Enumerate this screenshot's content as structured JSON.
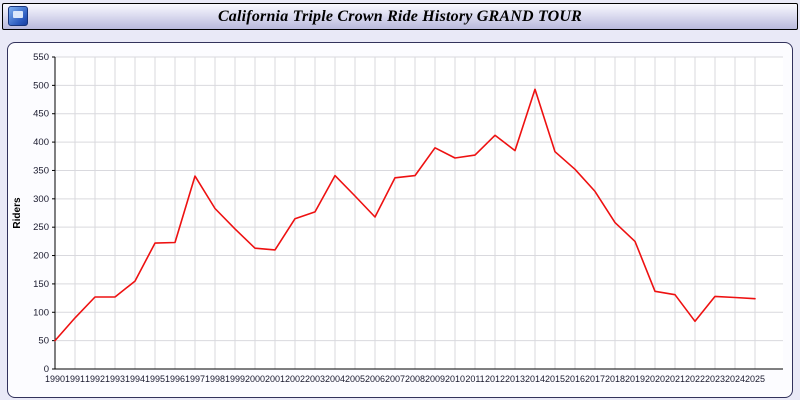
{
  "header": {
    "title": "California Triple Crown Ride History GRAND TOUR"
  },
  "chart_data": {
    "type": "line",
    "title": "California Triple Crown Ride History GRAND TOUR",
    "xlabel": "",
    "ylabel": "Riders",
    "ylim": [
      0,
      550
    ],
    "ytick_step": 50,
    "grid": true,
    "legend": "none",
    "plot_bg": "#ffffff",
    "grid_color": "#d9d9de",
    "axis_color": "#000000",
    "tick_label_color": "#1a1a2e",
    "x": [
      1990,
      1991,
      1992,
      1993,
      1994,
      1995,
      1996,
      1997,
      1998,
      1999,
      2000,
      2001,
      2002,
      2003,
      2004,
      2005,
      2006,
      2007,
      2008,
      2009,
      2010,
      2011,
      2012,
      2013,
      2014,
      2015,
      2016,
      2017,
      2018,
      2019,
      2020,
      2021,
      2022,
      2023,
      2024,
      2025
    ],
    "series": [
      {
        "name": "Riders",
        "color": "#ee1111",
        "values": [
          50,
          90,
          127,
          127,
          155,
          222,
          223,
          340,
          283,
          247,
          213,
          210,
          265,
          277,
          341,
          305,
          268,
          337,
          341,
          390,
          372,
          377,
          412,
          385,
          493,
          383,
          352,
          313,
          258,
          225,
          137,
          131,
          84,
          128,
          126,
          124
        ]
      }
    ]
  }
}
